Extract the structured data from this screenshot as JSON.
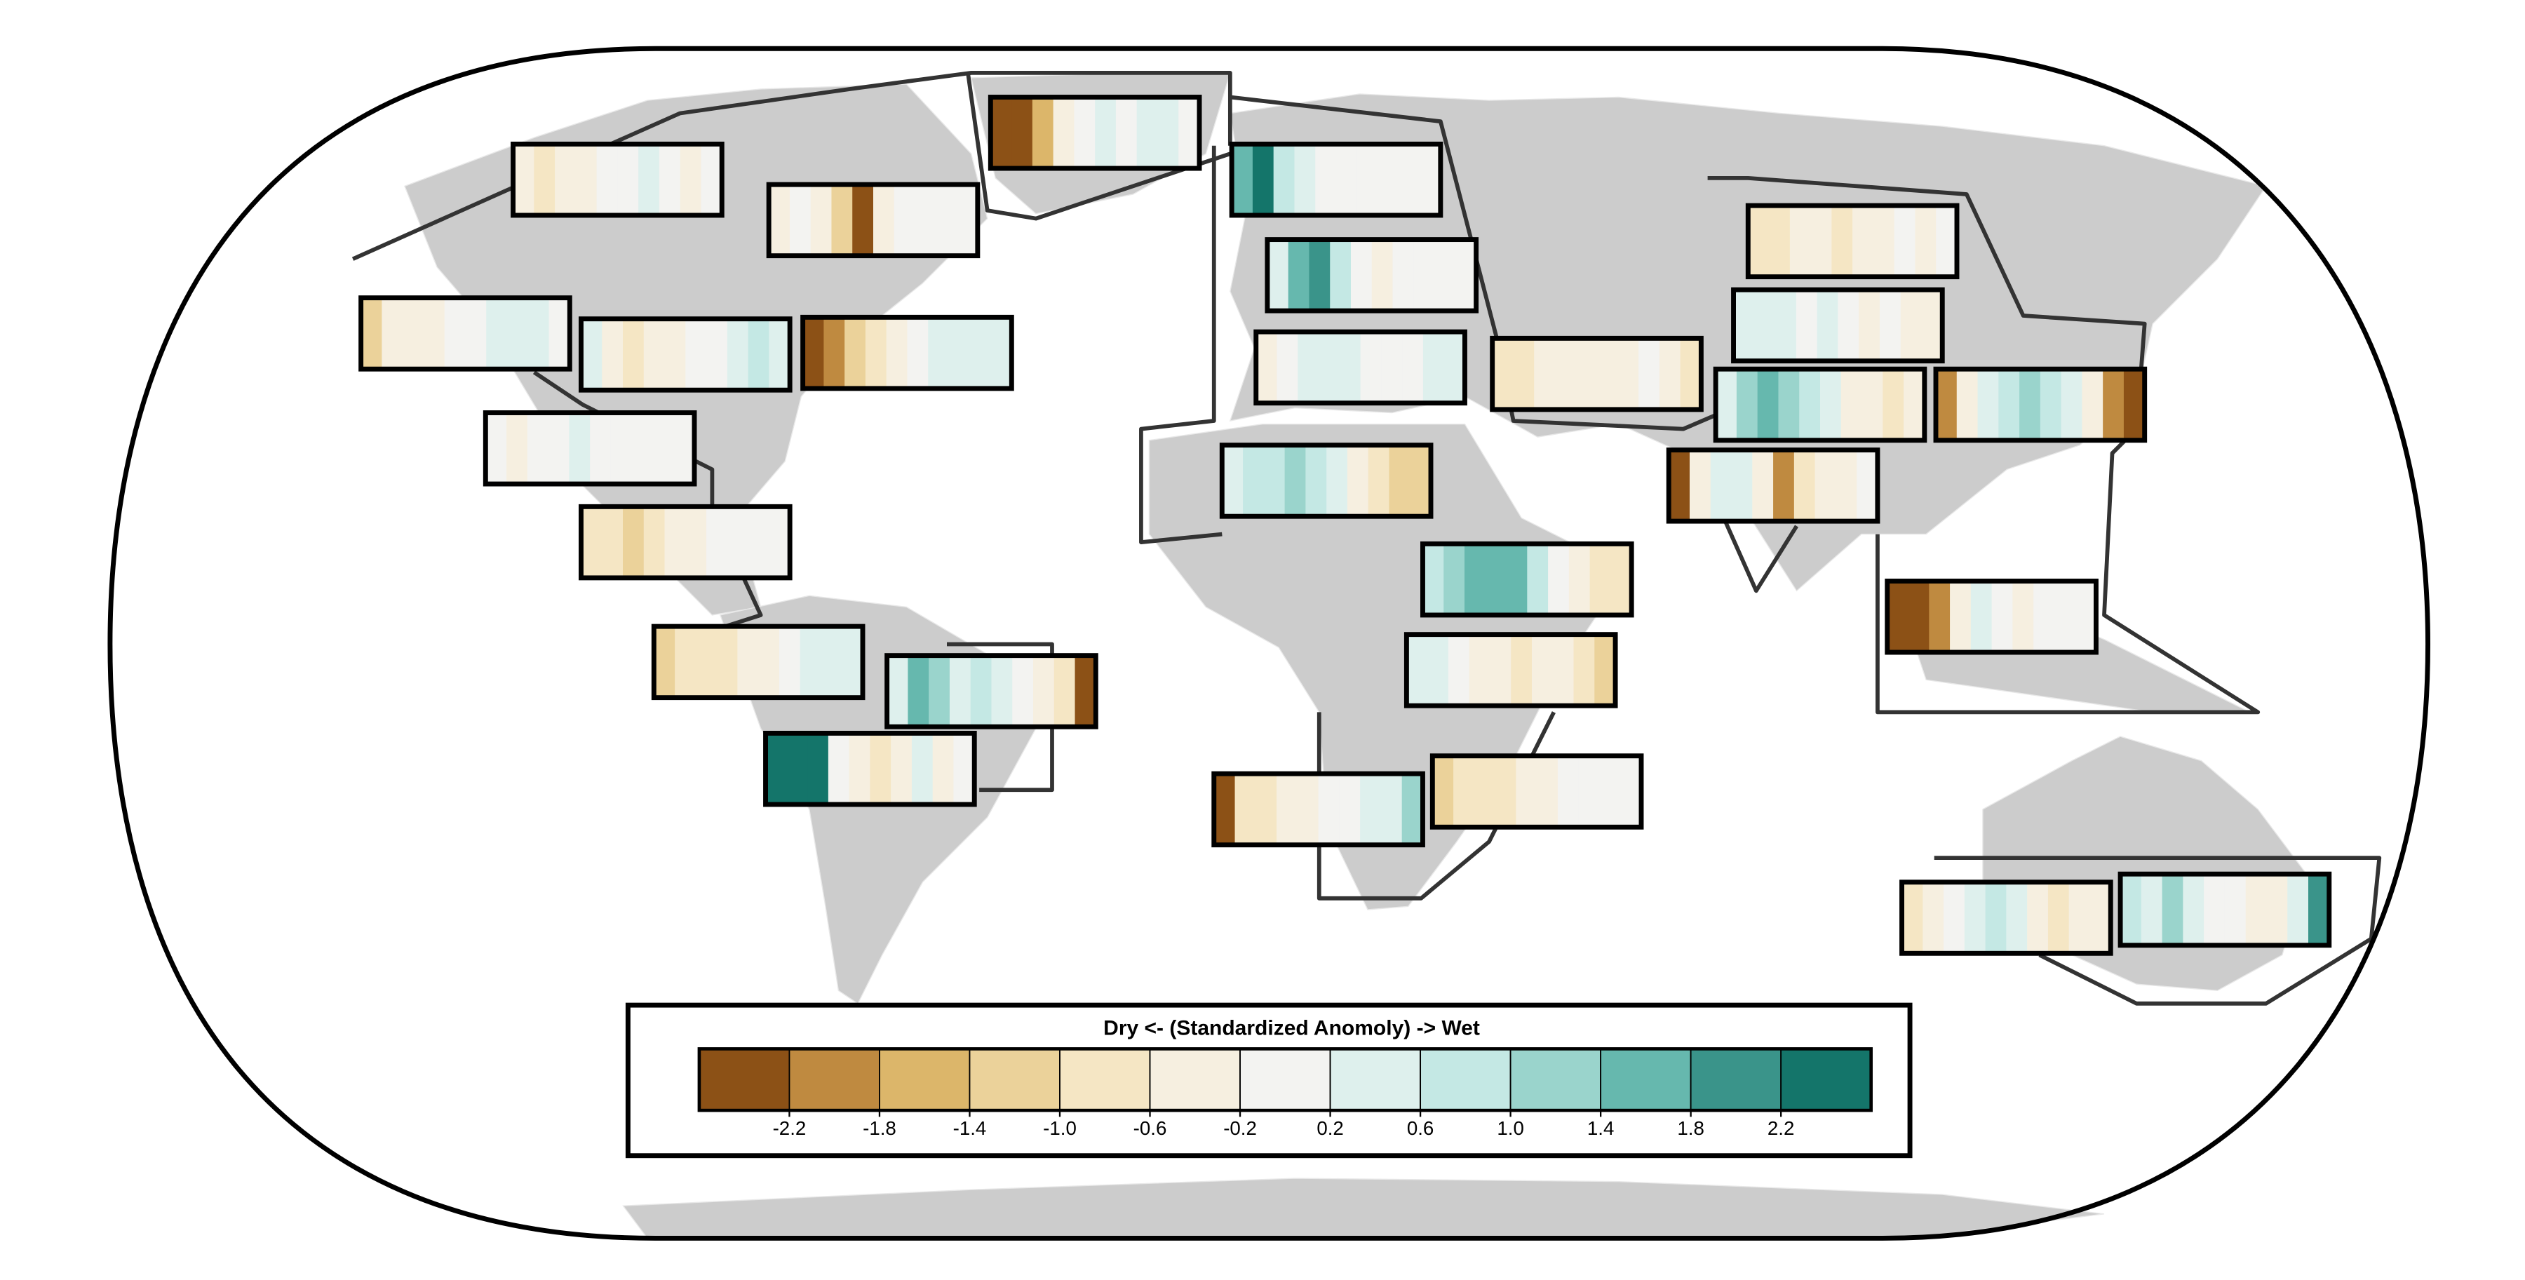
{
  "chart_data": {
    "type": "region-stripes",
    "legend": {
      "title": "Dry <- (Standardized Anomoly) -> Wet",
      "clim": [
        -2.6,
        2.6
      ],
      "ticks": [
        -2.2,
        -1.8,
        -1.4,
        {
          "value": -1.0,
          "label": "-1.0"
        },
        -0.6,
        -0.2,
        0.2,
        0.6,
        {
          "value": 1.0,
          "label": "1.0"
        },
        1.4,
        1.8,
        2.2
      ],
      "colors": [
        "#8c5116",
        "#bf8a40",
        "#dcb66a",
        "#ebd29a",
        "#f5e6c4",
        "#f6efe0",
        "#f3f3f1",
        "#def0ed",
        "#c4e8e4",
        "#9ad4cc",
        "#66b8ae",
        "#3a948a",
        "#14756a"
      ]
    },
    "regions": [
      {
        "values": [
          -0.5,
          -0.7,
          -0.5,
          -0.3,
          -0.1,
          0.1,
          0.3,
          0.1,
          -0.3,
          -0.1
        ]
      },
      {
        "values": [
          -0.5,
          -0.1,
          -0.3,
          -1.3,
          -2.4,
          -0.5,
          -0.1,
          0.1,
          0.1,
          0.1
        ]
      },
      {
        "values": [
          -2.4,
          -2.4,
          -1.5,
          -0.5,
          0.1,
          0.3,
          0.1,
          0.3,
          0.3,
          0.1
        ]
      },
      {
        "values": [
          1.6,
          2.4,
          0.7,
          0.3,
          0.1,
          -0.1,
          -0.1,
          0.1,
          -0.1,
          0.1
        ]
      },
      {
        "values": [
          0.5,
          1.6,
          2.0,
          0.7,
          0.1,
          -0.3,
          -0.1,
          0.1,
          -0.1,
          0.1
        ]
      },
      {
        "values": [
          -0.5,
          -0.1,
          0.3,
          0.5,
          0.3,
          0.1,
          0.1,
          -0.1,
          0.3,
          0.5
        ]
      },
      {
        "values": [
          -1.3,
          -0.5,
          -0.3,
          -0.3,
          -0.1,
          0.1,
          0.3,
          0.5,
          0.3,
          0.1
        ]
      },
      {
        "values": [
          0.3,
          -0.3,
          -0.7,
          -0.5,
          -0.3,
          -0.1,
          0.1,
          0.3,
          0.7,
          0.5
        ]
      },
      {
        "values": [
          -2.4,
          -2.0,
          -1.3,
          -0.7,
          -0.3,
          0.1,
          0.3,
          0.5,
          0.5,
          0.3
        ]
      },
      {
        "values": [
          -0.1,
          -0.3,
          -0.1,
          0.1,
          0.3,
          0.1,
          -0.1,
          0.1,
          -0.1,
          0.1
        ]
      },
      {
        "values": [
          -0.7,
          -1.0,
          -1.3,
          -0.7,
          -0.5,
          -0.3,
          -0.1,
          0.1,
          -0.1,
          0.1
        ]
      },
      {
        "values": [
          -1.3,
          -1.0,
          -0.9,
          -0.7,
          -0.5,
          -0.3,
          0.1,
          0.3,
          0.5,
          0.5
        ]
      },
      {
        "values": [
          0.5,
          1.6,
          1.2,
          0.3,
          0.7,
          0.3,
          -0.1,
          -0.5,
          -0.9,
          -2.4
        ]
      },
      {
        "values": [
          2.4,
          2.4,
          2.4,
          0.1,
          -0.5,
          -0.7,
          -0.3,
          0.5,
          -0.3,
          -0.1
        ]
      },
      {
        "values": [
          0.5,
          0.9,
          0.7,
          1.2,
          0.7,
          0.3,
          -0.3,
          -0.7,
          -1.3,
          -1.3
        ]
      },
      {
        "values": [
          -1.0,
          -0.7,
          -0.5,
          -0.3,
          -0.3,
          -0.5,
          -0.3,
          -0.1,
          -0.3,
          -0.7
        ]
      },
      {
        "values": [
          -0.7,
          -1.0,
          -0.5,
          -0.3,
          -0.7,
          -0.5,
          -0.3,
          -0.1,
          -0.3,
          -0.1
        ]
      },
      {
        "values": [
          0.5,
          0.3,
          0.3,
          0.1,
          0.3,
          -0.1,
          -0.3,
          -0.1,
          -0.3,
          -0.5
        ]
      },
      {
        "values": [
          0.5,
          1.2,
          1.7,
          1.3,
          0.9,
          0.3,
          -0.3,
          -0.5,
          -0.7,
          -0.3
        ]
      },
      {
        "values": [
          -2.0,
          -0.5,
          0.5,
          0.9,
          1.3,
          0.7,
          0.3,
          -0.5,
          -2.0,
          -2.4
        ]
      },
      {
        "values": [
          -2.4,
          -0.5,
          0.3,
          0.5,
          -0.5,
          -2.0,
          -1.0,
          -0.3,
          -0.5,
          -0.1
        ]
      },
      {
        "values": [
          -2.4,
          -2.4,
          -2.0,
          -0.5,
          0.3,
          0.1,
          -0.3,
          -0.1,
          0.1,
          -0.1
        ]
      },
      {
        "values": [
          0.9,
          1.2,
          1.6,
          1.6,
          1.6,
          0.7,
          -0.1,
          -0.5,
          -0.7,
          -1.0
        ]
      },
      {
        "values": [
          0.3,
          0.5,
          0.1,
          -0.3,
          -0.5,
          -0.7,
          -0.5,
          -0.3,
          -0.7,
          -1.3
        ]
      },
      {
        "values": [
          -2.4,
          -1.0,
          -0.7,
          -0.5,
          -0.3,
          0.1,
          -0.1,
          0.3,
          0.5,
          1.2
        ]
      },
      {
        "values": [
          -1.3,
          -1.0,
          -0.7,
          -0.9,
          -0.5,
          -0.3,
          -0.1,
          0.1,
          0.1,
          0.1
        ]
      },
      {
        "values": [
          -0.7,
          -0.5,
          0.1,
          0.3,
          0.7,
          0.3,
          -0.3,
          -0.7,
          -0.5,
          -0.3
        ]
      },
      {
        "values": [
          0.7,
          0.3,
          1.2,
          0.3,
          -0.1,
          0.1,
          -0.3,
          -0.5,
          0.5,
          2.0
        ]
      }
    ]
  }
}
